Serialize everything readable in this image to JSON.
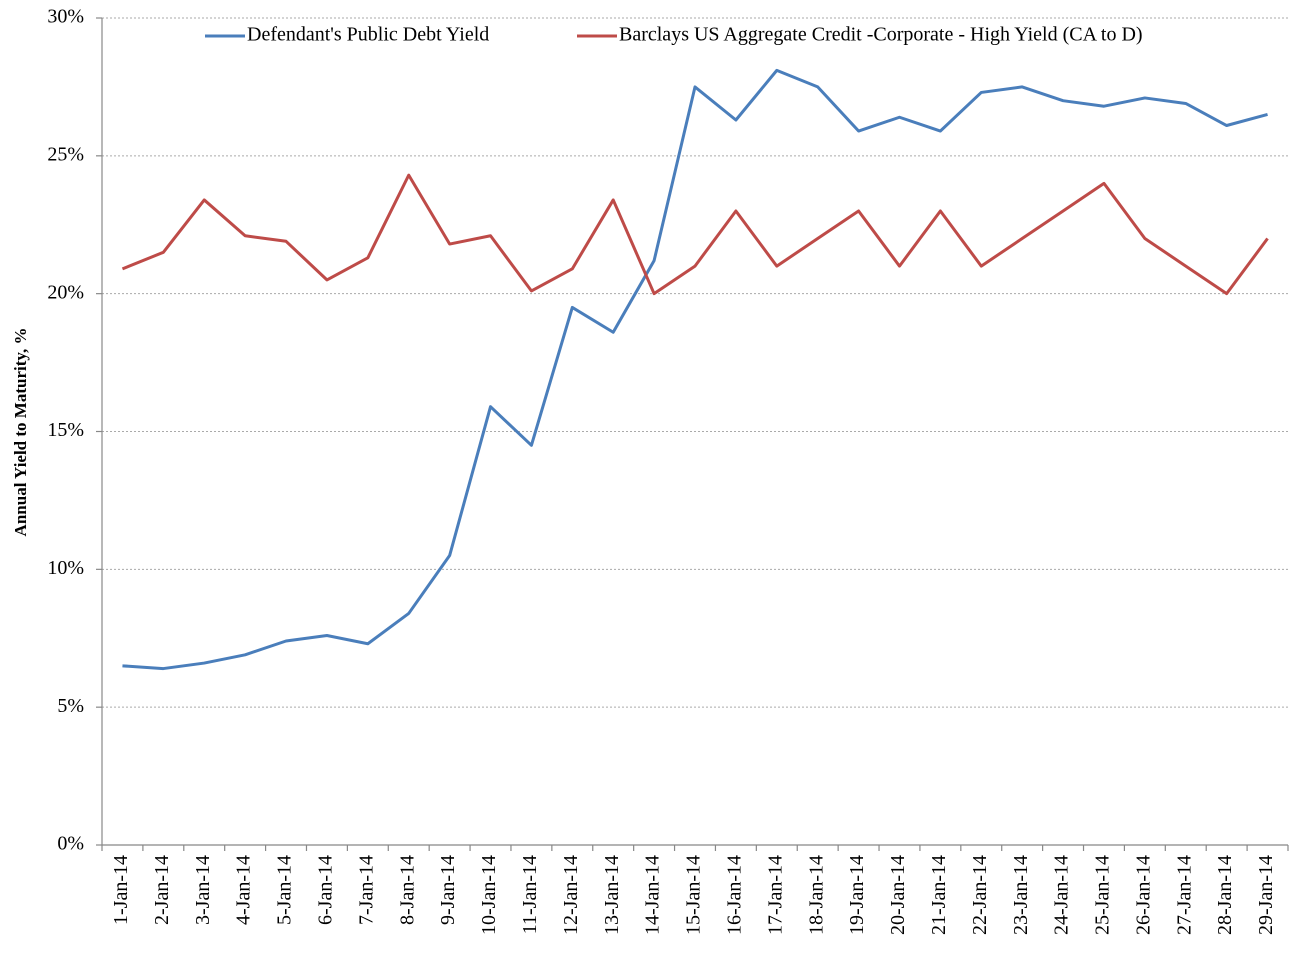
{
  "chart_data": {
    "type": "line",
    "y_label": "Annual Yield to Maturity, %",
    "categories": [
      "1-Jan-14",
      "2-Jan-14",
      "3-Jan-14",
      "4-Jan-14",
      "5-Jan-14",
      "6-Jan-14",
      "7-Jan-14",
      "8-Jan-14",
      "9-Jan-14",
      "10-Jan-14",
      "11-Jan-14",
      "12-Jan-14",
      "13-Jan-14",
      "14-Jan-14",
      "15-Jan-14",
      "16-Jan-14",
      "17-Jan-14",
      "18-Jan-14",
      "19-Jan-14",
      "20-Jan-14",
      "21-Jan-14",
      "22-Jan-14",
      "23-Jan-14",
      "24-Jan-14",
      "25-Jan-14",
      "26-Jan-14",
      "27-Jan-14",
      "28-Jan-14",
      "29-Jan-14"
    ],
    "series": [
      {
        "name": "Defendant's Public Debt Yield",
        "color": "#4a7ebb",
        "values": [
          6.5,
          6.4,
          6.6,
          6.9,
          7.4,
          7.6,
          7.3,
          8.4,
          10.5,
          15.9,
          14.5,
          19.5,
          18.6,
          21.2,
          27.5,
          26.3,
          28.1,
          27.5,
          25.9,
          26.4,
          25.9,
          27.3,
          27.5,
          27.0,
          26.8,
          27.1,
          26.9,
          26.1,
          26.5
        ]
      },
      {
        "name": "Barclays US Aggregate Credit -Corporate - High Yield (CA to D)",
        "color": "#be4b48",
        "values": [
          20.9,
          21.5,
          23.4,
          22.1,
          21.9,
          20.5,
          21.3,
          24.3,
          21.8,
          22.1,
          20.1,
          20.9,
          23.4,
          20.0,
          21.0,
          23.0,
          21.0,
          22.0,
          23.0,
          21.0,
          23.0,
          21.0,
          22.0,
          23.0,
          24.0,
          22.0,
          21.0,
          20.0,
          22.0
        ]
      }
    ],
    "ylim": [
      0,
      30
    ],
    "yticks": [
      {
        "value": 0,
        "label": "0%"
      },
      {
        "value": 5,
        "label": "5%"
      },
      {
        "value": 10,
        "label": "10%"
      },
      {
        "value": 15,
        "label": "15%"
      },
      {
        "value": 20,
        "label": "20%"
      },
      {
        "value": 25,
        "label": "25%"
      },
      {
        "value": 30,
        "label": "30%"
      }
    ],
    "grid": true
  }
}
